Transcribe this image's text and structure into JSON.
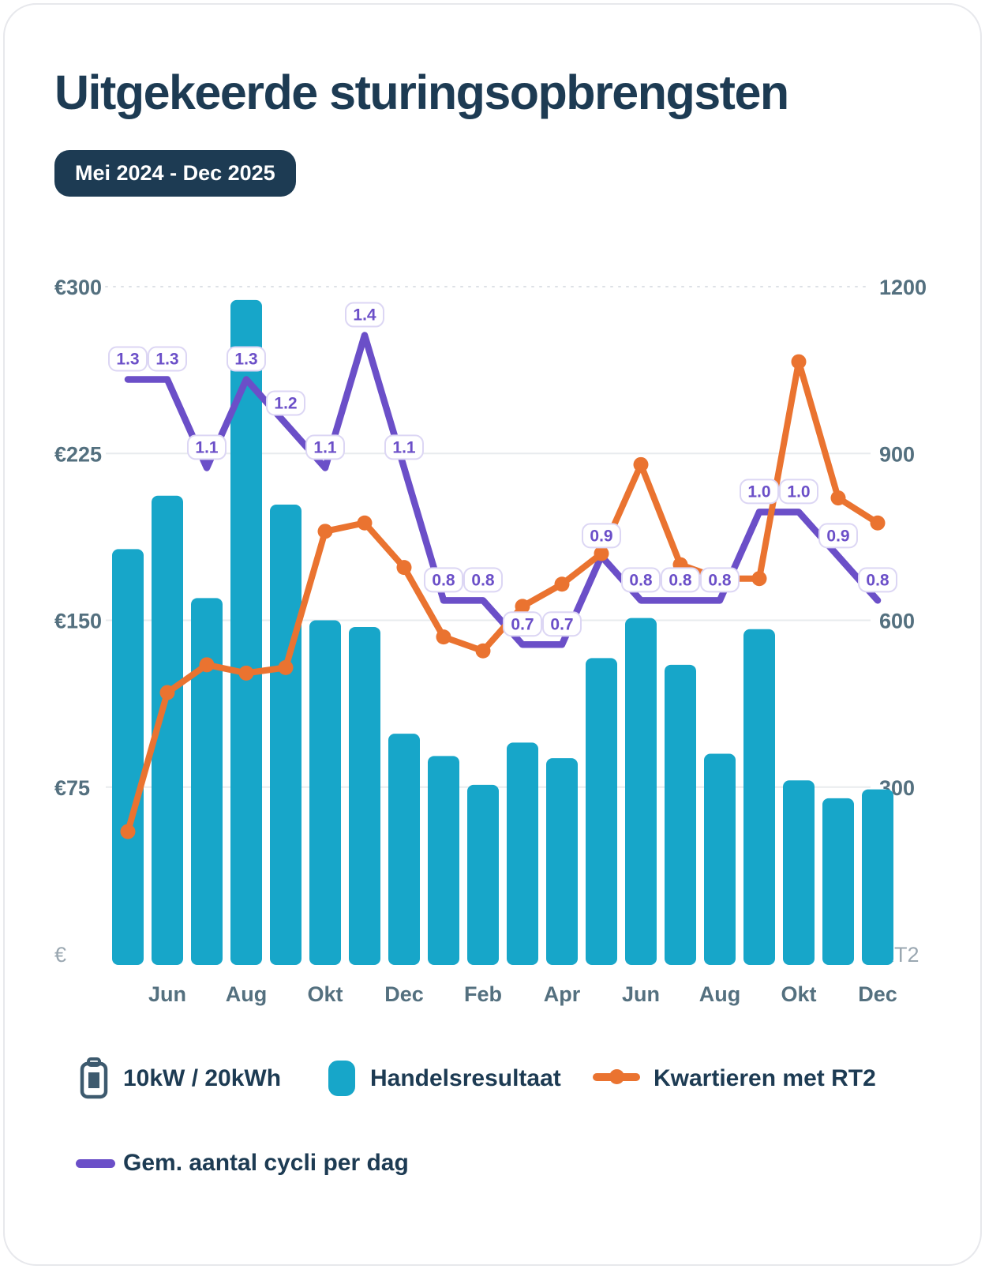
{
  "header": {
    "title": "Uitgekeerde sturingsopbrengsten",
    "period_badge": "Mei 2024 - Dec 2025"
  },
  "chart_data": {
    "type": "combo-bar-line",
    "categories": [
      "Mei 2024",
      "Jun 2024",
      "Jul 2024",
      "Aug 2024",
      "Sep 2024",
      "Okt 2024",
      "Nov 2024",
      "Dec 2024",
      "Jan 2025",
      "Feb 2025",
      "Mrt 2025",
      "Apr 2025",
      "Mei 2025",
      "Jun 2025",
      "Jul 2025",
      "Aug 2025",
      "Sep 2025",
      "Okt 2025",
      "Nov 2025",
      "Dec 2025"
    ],
    "x_tick_labels": [
      "Jun",
      "Aug",
      "Okt",
      "Dec",
      "Feb",
      "Apr",
      "Jun",
      "Aug",
      "Okt",
      "Dec"
    ],
    "x_ticks_every": 2,
    "series": [
      {
        "name": "Handelsresultaat",
        "type": "bar",
        "axis": "left",
        "unit": "€",
        "color": "#17a6c9",
        "values": [
          182,
          206,
          160,
          294,
          202,
          150,
          147,
          99,
          89,
          76,
          95,
          88,
          133,
          151,
          130,
          90,
          146,
          78,
          70,
          74
        ]
      },
      {
        "name": "Kwartieren met RT2",
        "type": "line",
        "axis": "right",
        "color": "#ea7330",
        "values": [
          220,
          470,
          520,
          505,
          515,
          760,
          775,
          695,
          570,
          545,
          625,
          665,
          720,
          880,
          700,
          675,
          675,
          1065,
          820,
          775
        ]
      },
      {
        "name": "Gem. aantal cycli per dag",
        "type": "line",
        "axis": "hidden",
        "color": "#6b4fc8",
        "point_labels": true,
        "values": [
          1.3,
          1.3,
          1.1,
          1.3,
          1.2,
          1.1,
          1.4,
          1.1,
          0.8,
          0.8,
          0.7,
          0.7,
          0.9,
          0.8,
          0.8,
          0.8,
          1.0,
          1.0,
          0.9,
          0.8
        ]
      }
    ],
    "left_axis": {
      "max": 300,
      "ticks": [
        {
          "label": "€300",
          "value": 300
        },
        {
          "label": "€225",
          "value": 225
        },
        {
          "label": "€150",
          "value": 150
        },
        {
          "label": "€75",
          "value": 75
        },
        {
          "label": "€",
          "value": 0
        }
      ]
    },
    "right_axis": {
      "max": 1200,
      "ticks": [
        {
          "label": "1200",
          "value": 1200
        },
        {
          "label": "900",
          "value": 900
        },
        {
          "label": "600",
          "value": 600
        },
        {
          "label": "300",
          "value": 300
        },
        {
          "label": "RT2",
          "value": 0
        }
      ]
    },
    "hidden_axis_max": 1.51,
    "grid": "horizontal"
  },
  "legend": {
    "system_label": "10kW / 20kWh",
    "items": [
      {
        "swatch": "bar",
        "color": "#17a6c9",
        "label": "Handelsresultaat"
      },
      {
        "swatch": "line-dot",
        "color": "#ea7330",
        "label": "Kwartieren met RT2"
      },
      {
        "swatch": "line",
        "color": "#6b4fc8",
        "label": "Gem. aantal cycli per dag"
      }
    ]
  },
  "colors": {
    "bar": "#17a6c9",
    "orange": "#ea7330",
    "purple": "#6b4fc8",
    "navy": "#1d3b53",
    "axis_text": "#54707f",
    "axis_muted": "#9aa7b1",
    "grid": "#e8ebee",
    "grid_dotted": "#dde1e6",
    "pill_border": "#dcd6f4",
    "pill_text": "#6b4fc8",
    "card_border": "#e7e8ec",
    "icon": "#3d5a6e"
  }
}
